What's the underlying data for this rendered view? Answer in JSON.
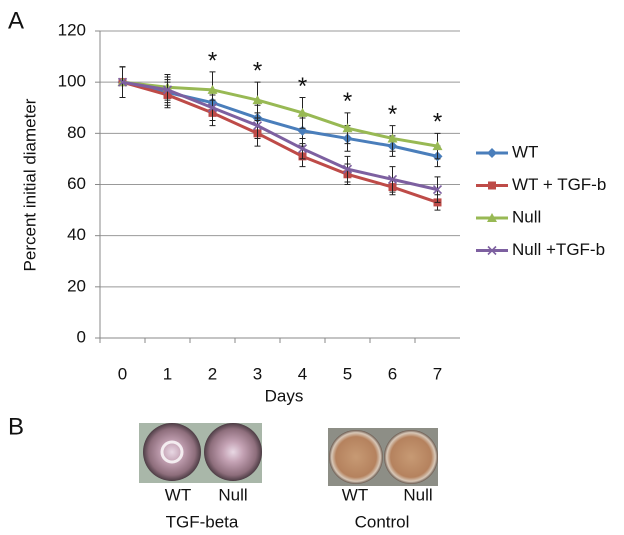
{
  "chart_data": {
    "type": "line",
    "y_label": "Percent initial diameter",
    "x_label": "Days",
    "categories": [
      "0",
      "1",
      "2",
      "3",
      "4",
      "5",
      "6",
      "7"
    ],
    "series": [
      {
        "name": "WT",
        "color": "#4a7ebb",
        "marker": "diamond",
        "values": [
          100,
          96,
          92,
          86,
          81,
          78,
          75,
          71
        ],
        "errors": [
          6,
          5,
          5,
          5,
          5,
          5,
          4,
          4
        ]
      },
      {
        "name": "WT + TGF-b",
        "color": "#be4b48",
        "marker": "square",
        "values": [
          100,
          95,
          88,
          80,
          71,
          64,
          59,
          53
        ],
        "errors": [
          6,
          5,
          5,
          5,
          4,
          4,
          3,
          3
        ]
      },
      {
        "name": "Null",
        "color": "#98b954",
        "marker": "triangle",
        "values": [
          100,
          98,
          97,
          93,
          88,
          82,
          78,
          75
        ],
        "errors": [
          6,
          5,
          7,
          7,
          6,
          6,
          5,
          5
        ]
      },
      {
        "name": "Null +TGF-b",
        "color": "#7d60a0",
        "marker": "x",
        "values": [
          100,
          97,
          90,
          83,
          74,
          66,
          62,
          58
        ],
        "errors": [
          6,
          5,
          5,
          5,
          4,
          5,
          5,
          5
        ]
      }
    ],
    "annotations": [
      {
        "category": "2",
        "text": "*"
      },
      {
        "category": "3",
        "text": "*"
      },
      {
        "category": "4",
        "text": "*"
      },
      {
        "category": "5",
        "text": "*"
      },
      {
        "category": "6",
        "text": "*"
      },
      {
        "category": "7",
        "text": "*"
      }
    ],
    "ylim": [
      0,
      120
    ],
    "yticks": [
      0,
      20,
      40,
      60,
      80,
      100,
      120
    ],
    "grid": true,
    "legend": "right"
  },
  "panel_labels": [
    "A",
    "B"
  ],
  "panel_b": {
    "groups": [
      {
        "labels": [
          "WT",
          "Null"
        ],
        "caption": "TGF-beta"
      },
      {
        "labels": [
          "WT",
          "Null"
        ],
        "caption": "Control"
      }
    ]
  }
}
